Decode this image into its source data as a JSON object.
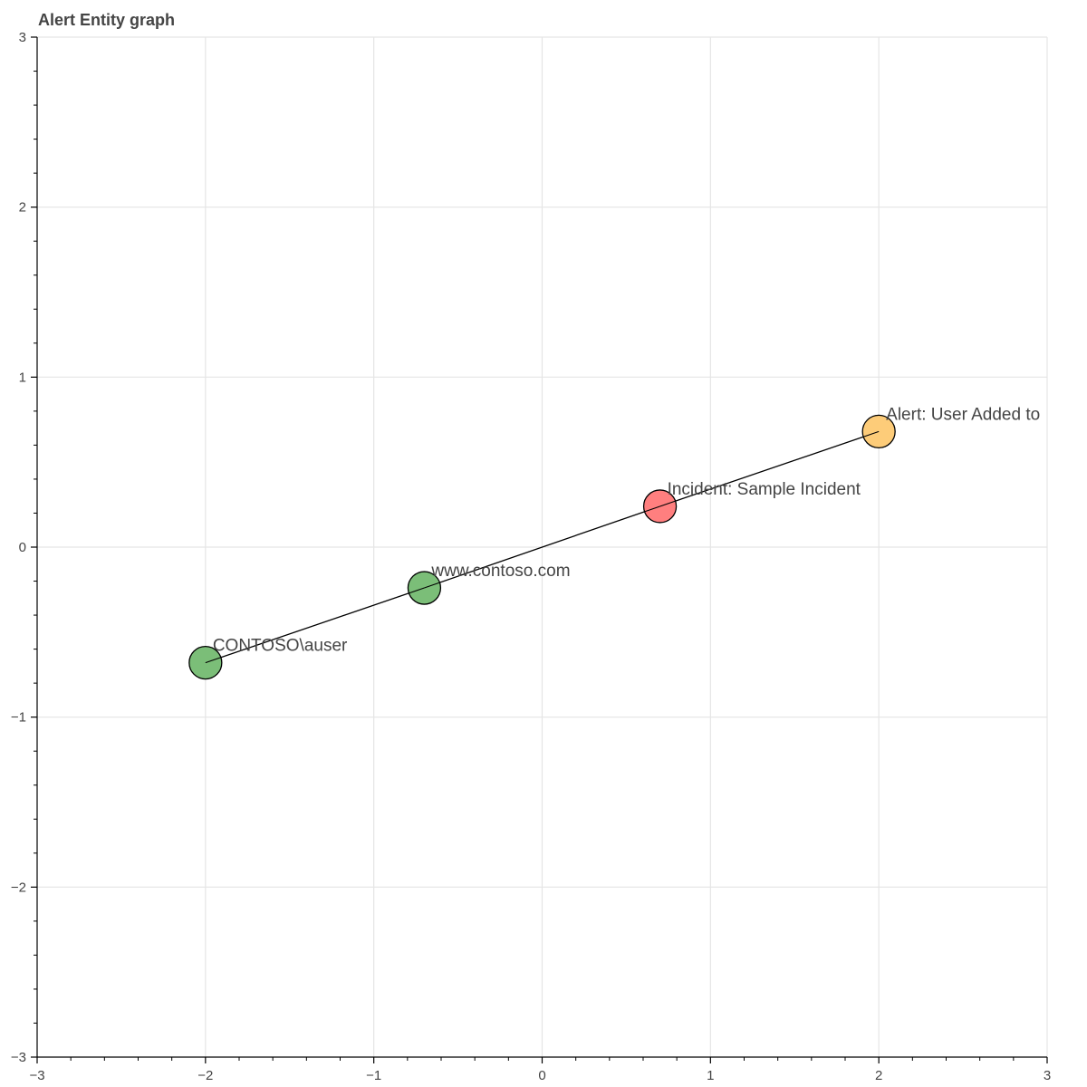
{
  "chart_data": {
    "type": "scatter",
    "title": "Alert Entity graph",
    "xlim": [
      -3,
      3
    ],
    "ylim": [
      -3,
      3
    ],
    "x_ticks": [
      -3,
      -2,
      -1,
      0,
      1,
      2,
      3
    ],
    "y_ticks": [
      -3,
      -2,
      -1,
      0,
      1,
      2,
      3
    ],
    "x_tick_labels": [
      "−3",
      "−2",
      "−1",
      "0",
      "1",
      "2",
      "3"
    ],
    "y_tick_labels": [
      "−3",
      "−2",
      "−1",
      "0",
      "1",
      "2",
      "3"
    ],
    "minor_per_major": 5,
    "grid": true,
    "nodes": [
      {
        "id": "alert",
        "label": "Alert: User Added to",
        "x": 2.0,
        "y": 0.68,
        "color": "#FDCC79"
      },
      {
        "id": "incident",
        "label": "Incident: Sample Incident",
        "x": 0.7,
        "y": 0.24,
        "color": "#FF7F7F"
      },
      {
        "id": "url",
        "label": "www.contoso.com",
        "x": -0.7,
        "y": -0.24,
        "color": "#7BBE78"
      },
      {
        "id": "account",
        "label": "CONTOSO\\auser",
        "x": -2.0,
        "y": -0.68,
        "color": "#7BBE78"
      }
    ],
    "edges": [
      {
        "from": "account",
        "to": "url"
      },
      {
        "from": "url",
        "to": "incident"
      },
      {
        "from": "incident",
        "to": "alert"
      }
    ]
  }
}
